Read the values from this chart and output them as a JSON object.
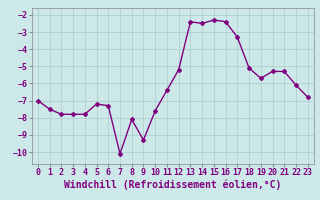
{
  "x": [
    0,
    1,
    2,
    3,
    4,
    5,
    6,
    7,
    8,
    9,
    10,
    11,
    12,
    13,
    14,
    15,
    16,
    17,
    18,
    19,
    20,
    21,
    22,
    23
  ],
  "y": [
    -7.0,
    -7.5,
    -7.8,
    -7.8,
    -7.8,
    -7.2,
    -7.3,
    -10.1,
    -8.1,
    -9.3,
    -7.6,
    -6.4,
    -5.2,
    -2.4,
    -2.5,
    -2.3,
    -2.4,
    -3.3,
    -5.1,
    -5.7,
    -5.3,
    -5.3,
    -6.1,
    -6.8
  ],
  "line_color": "#800080",
  "marker": "D",
  "marker_size": 2.0,
  "linewidth": 1.0,
  "bg_color": "#cce8e8",
  "grid_color": "#aacccc",
  "xlabel": "Windchill (Refroidissement éolien,°C)",
  "ylabel": "",
  "xlim": [
    -0.5,
    23.5
  ],
  "ylim": [
    -10.7,
    -1.6
  ],
  "yticks": [
    -10,
    -9,
    -8,
    -7,
    -6,
    -5,
    -4,
    -3,
    -2
  ],
  "xticks": [
    0,
    1,
    2,
    3,
    4,
    5,
    6,
    7,
    8,
    9,
    10,
    11,
    12,
    13,
    14,
    15,
    16,
    17,
    18,
    19,
    20,
    21,
    22,
    23
  ],
  "tick_fontsize": 6,
  "xlabel_fontsize": 7
}
